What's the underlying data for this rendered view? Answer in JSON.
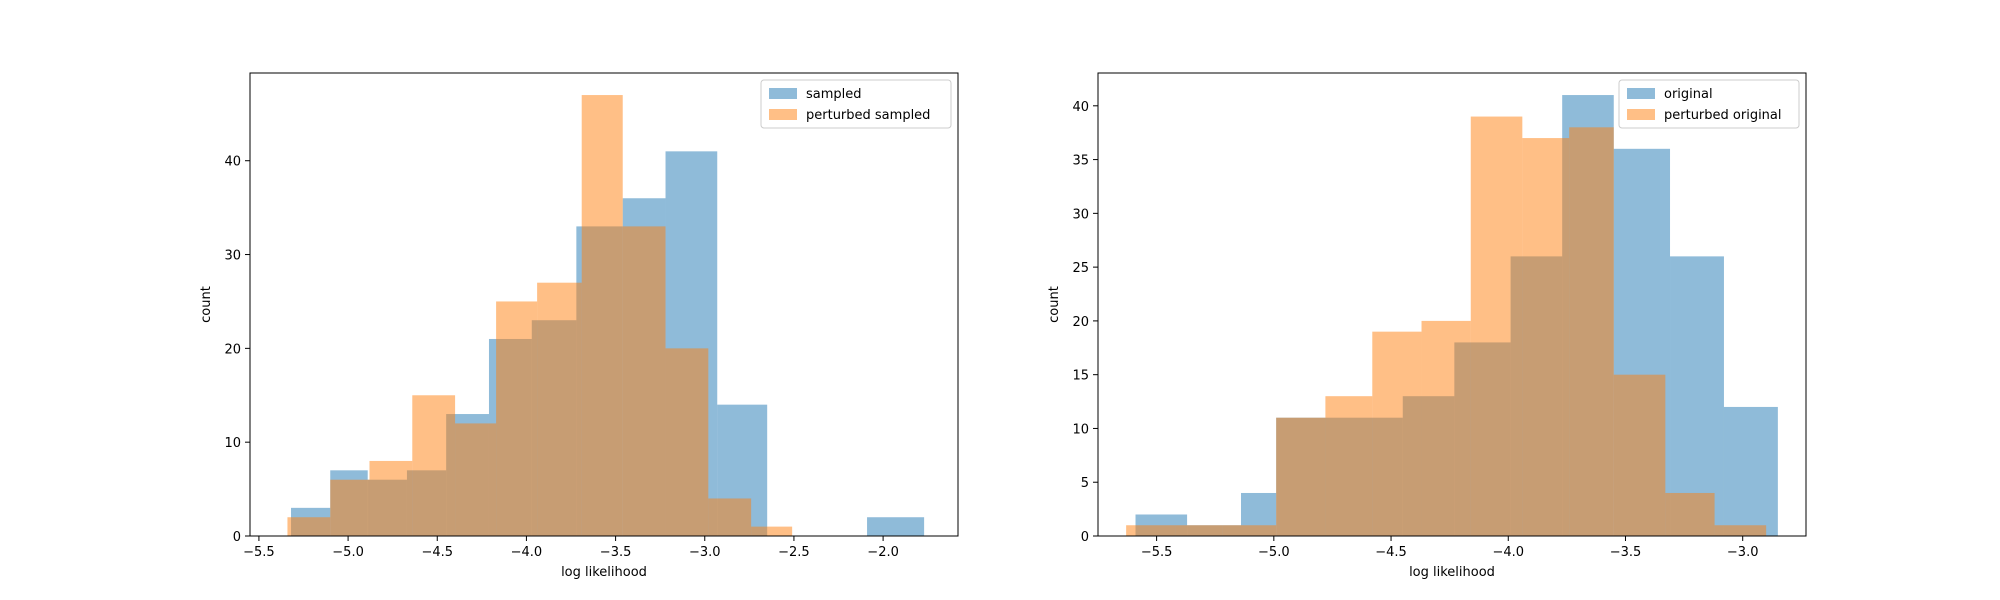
{
  "chart_data": [
    {
      "type": "bar",
      "subtype": "histogram",
      "xlabel": "log likelihood",
      "ylabel": "count",
      "xlim": [
        -5.55,
        -1.58
      ],
      "ylim": [
        0,
        49.35
      ],
      "xticks": [
        -5.5,
        -5.0,
        -4.5,
        -4.0,
        -3.5,
        -3.0,
        -2.5,
        -2.0
      ],
      "xtick_labels": [
        "−5.5",
        "−5.0",
        "−4.5",
        "−4.0",
        "−3.5",
        "−3.0",
        "−2.5",
        "−2.0"
      ],
      "yticks": [
        0,
        10,
        20,
        30,
        40
      ],
      "legend_position": "top-right",
      "series": [
        {
          "name": "sampled",
          "color": "#1f77b4",
          "bins": [
            [
              -5.32,
              -5.1,
              3
            ],
            [
              -5.1,
              -4.89,
              7
            ],
            [
              -4.89,
              -4.67,
              6
            ],
            [
              -4.67,
              -4.45,
              7
            ],
            [
              -4.45,
              -4.21,
              13
            ],
            [
              -4.21,
              -3.97,
              21
            ],
            [
              -3.97,
              -3.72,
              23
            ],
            [
              -3.72,
              -3.46,
              33
            ],
            [
              -3.46,
              -3.22,
              36
            ],
            [
              -3.22,
              -2.93,
              41
            ],
            [
              -2.93,
              -2.65,
              14
            ],
            [
              -2.65,
              -2.37,
              0
            ],
            [
              -2.37,
              -2.09,
              0
            ],
            [
              -2.09,
              -1.77,
              2
            ]
          ]
        },
        {
          "name": "perturbed sampled",
          "color": "#ff7f0e",
          "bins": [
            [
              -5.34,
              -5.1,
              2
            ],
            [
              -5.1,
              -4.88,
              6
            ],
            [
              -4.88,
              -4.64,
              8
            ],
            [
              -4.64,
              -4.4,
              15
            ],
            [
              -4.4,
              -4.17,
              12
            ],
            [
              -4.17,
              -3.94,
              25
            ],
            [
              -3.94,
              -3.69,
              27
            ],
            [
              -3.69,
              -3.46,
              47
            ],
            [
              -3.46,
              -3.22,
              33
            ],
            [
              -3.22,
              -2.98,
              20
            ],
            [
              -2.98,
              -2.74,
              4
            ],
            [
              -2.74,
              -2.51,
              1
            ]
          ]
        }
      ]
    },
    {
      "type": "bar",
      "subtype": "histogram",
      "xlabel": "log likelihood",
      "ylabel": "count",
      "xlim": [
        -5.75,
        -2.73
      ],
      "ylim": [
        0,
        43.05
      ],
      "xticks": [
        -5.5,
        -5.0,
        -4.5,
        -4.0,
        -3.5,
        -3.0
      ],
      "xtick_labels": [
        "−5.5",
        "−5.0",
        "−4.5",
        "−4.0",
        "−3.5",
        "−3.0"
      ],
      "yticks": [
        0,
        5,
        10,
        15,
        20,
        25,
        30,
        35,
        40
      ],
      "legend_position": "top-right",
      "series": [
        {
          "name": "original",
          "color": "#1f77b4",
          "bins": [
            [
              -5.59,
              -5.37,
              2
            ],
            [
              -5.37,
              -5.14,
              1
            ],
            [
              -5.14,
              -4.99,
              4
            ],
            [
              -4.99,
              -4.69,
              11
            ],
            [
              -4.69,
              -4.45,
              11
            ],
            [
              -4.45,
              -4.23,
              13
            ],
            [
              -4.23,
              -3.99,
              18
            ],
            [
              -3.99,
              -3.77,
              26
            ],
            [
              -3.77,
              -3.55,
              41
            ],
            [
              -3.55,
              -3.31,
              36
            ],
            [
              -3.31,
              -3.08,
              26
            ],
            [
              -3.08,
              -2.85,
              12
            ]
          ]
        },
        {
          "name": "perturbed original",
          "color": "#ff7f0e",
          "bins": [
            [
              -5.63,
              -5.42,
              1
            ],
            [
              -5.42,
              -5.22,
              1
            ],
            [
              -5.22,
              -4.99,
              1
            ],
            [
              -4.99,
              -4.78,
              11
            ],
            [
              -4.78,
              -4.58,
              13
            ],
            [
              -4.58,
              -4.37,
              19
            ],
            [
              -4.37,
              -4.16,
              20
            ],
            [
              -4.16,
              -3.94,
              39
            ],
            [
              -3.94,
              -3.74,
              37
            ],
            [
              -3.74,
              -3.55,
              38
            ],
            [
              -3.55,
              -3.33,
              15
            ],
            [
              -3.33,
              -3.12,
              4
            ],
            [
              -3.12,
              -2.9,
              1
            ]
          ]
        }
      ]
    }
  ]
}
